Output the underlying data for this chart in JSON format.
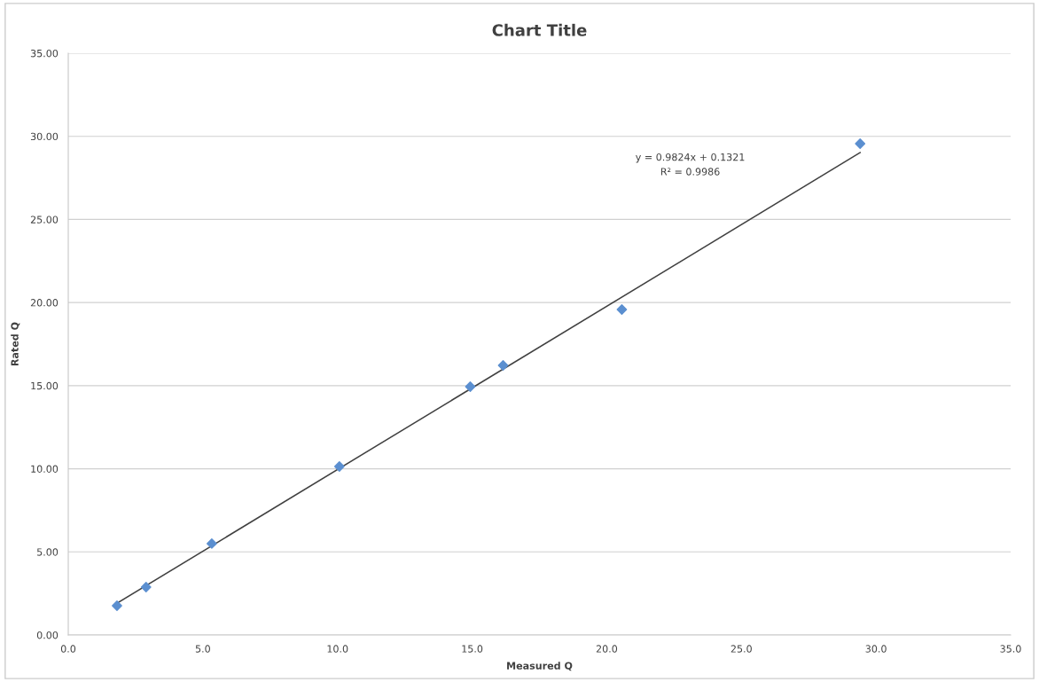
{
  "chart_data": {
    "type": "scatter",
    "title": "Chart Title",
    "xlabel": "Measured Q",
    "ylabel": "Rated Q",
    "annotations": [
      "y = 0.9824x + 0.1321",
      "R² = 0.9986"
    ],
    "x": [
      1.81,
      2.89,
      5.33,
      10.07,
      14.93,
      16.15,
      20.56,
      29.41
    ],
    "series": [
      {
        "color": "#5b8fd0",
        "marker": "diamond",
        "values": [
          1.76,
          2.88,
          5.5,
          10.14,
          14.94,
          16.22,
          19.58,
          29.56
        ]
      },
      {
        "type": "line",
        "color": "#404040",
        "marker": "none",
        "line_style": "solid",
        "x": [
          1.81,
          29.41
        ],
        "values": [
          1.91,
          29.02
        ]
      }
    ],
    "xlim": [
      0,
      35
    ],
    "xticks": [
      {
        "value": 0,
        "label": "0.0"
      },
      {
        "value": 5,
        "label": "5.0"
      },
      {
        "value": 10,
        "label": "10.0"
      },
      {
        "value": 15,
        "label": "15.0"
      },
      {
        "value": 20,
        "label": "20.0"
      },
      {
        "value": 25,
        "label": "25.0"
      },
      {
        "value": 30,
        "label": "30.0"
      },
      {
        "value": 35,
        "label": "35.0"
      }
    ],
    "ylim": [
      0,
      35
    ],
    "yticks": [
      {
        "value": 0,
        "label": "0.00"
      },
      {
        "value": 5,
        "label": "5.00"
      },
      {
        "value": 10,
        "label": "10.00"
      },
      {
        "value": 15,
        "label": "15.00"
      },
      {
        "value": 20,
        "label": "20.00"
      },
      {
        "value": 25,
        "label": "25.00"
      },
      {
        "value": 30,
        "label": "30.00"
      },
      {
        "value": 35,
        "label": "35.00"
      }
    ],
    "grid": "y"
  }
}
